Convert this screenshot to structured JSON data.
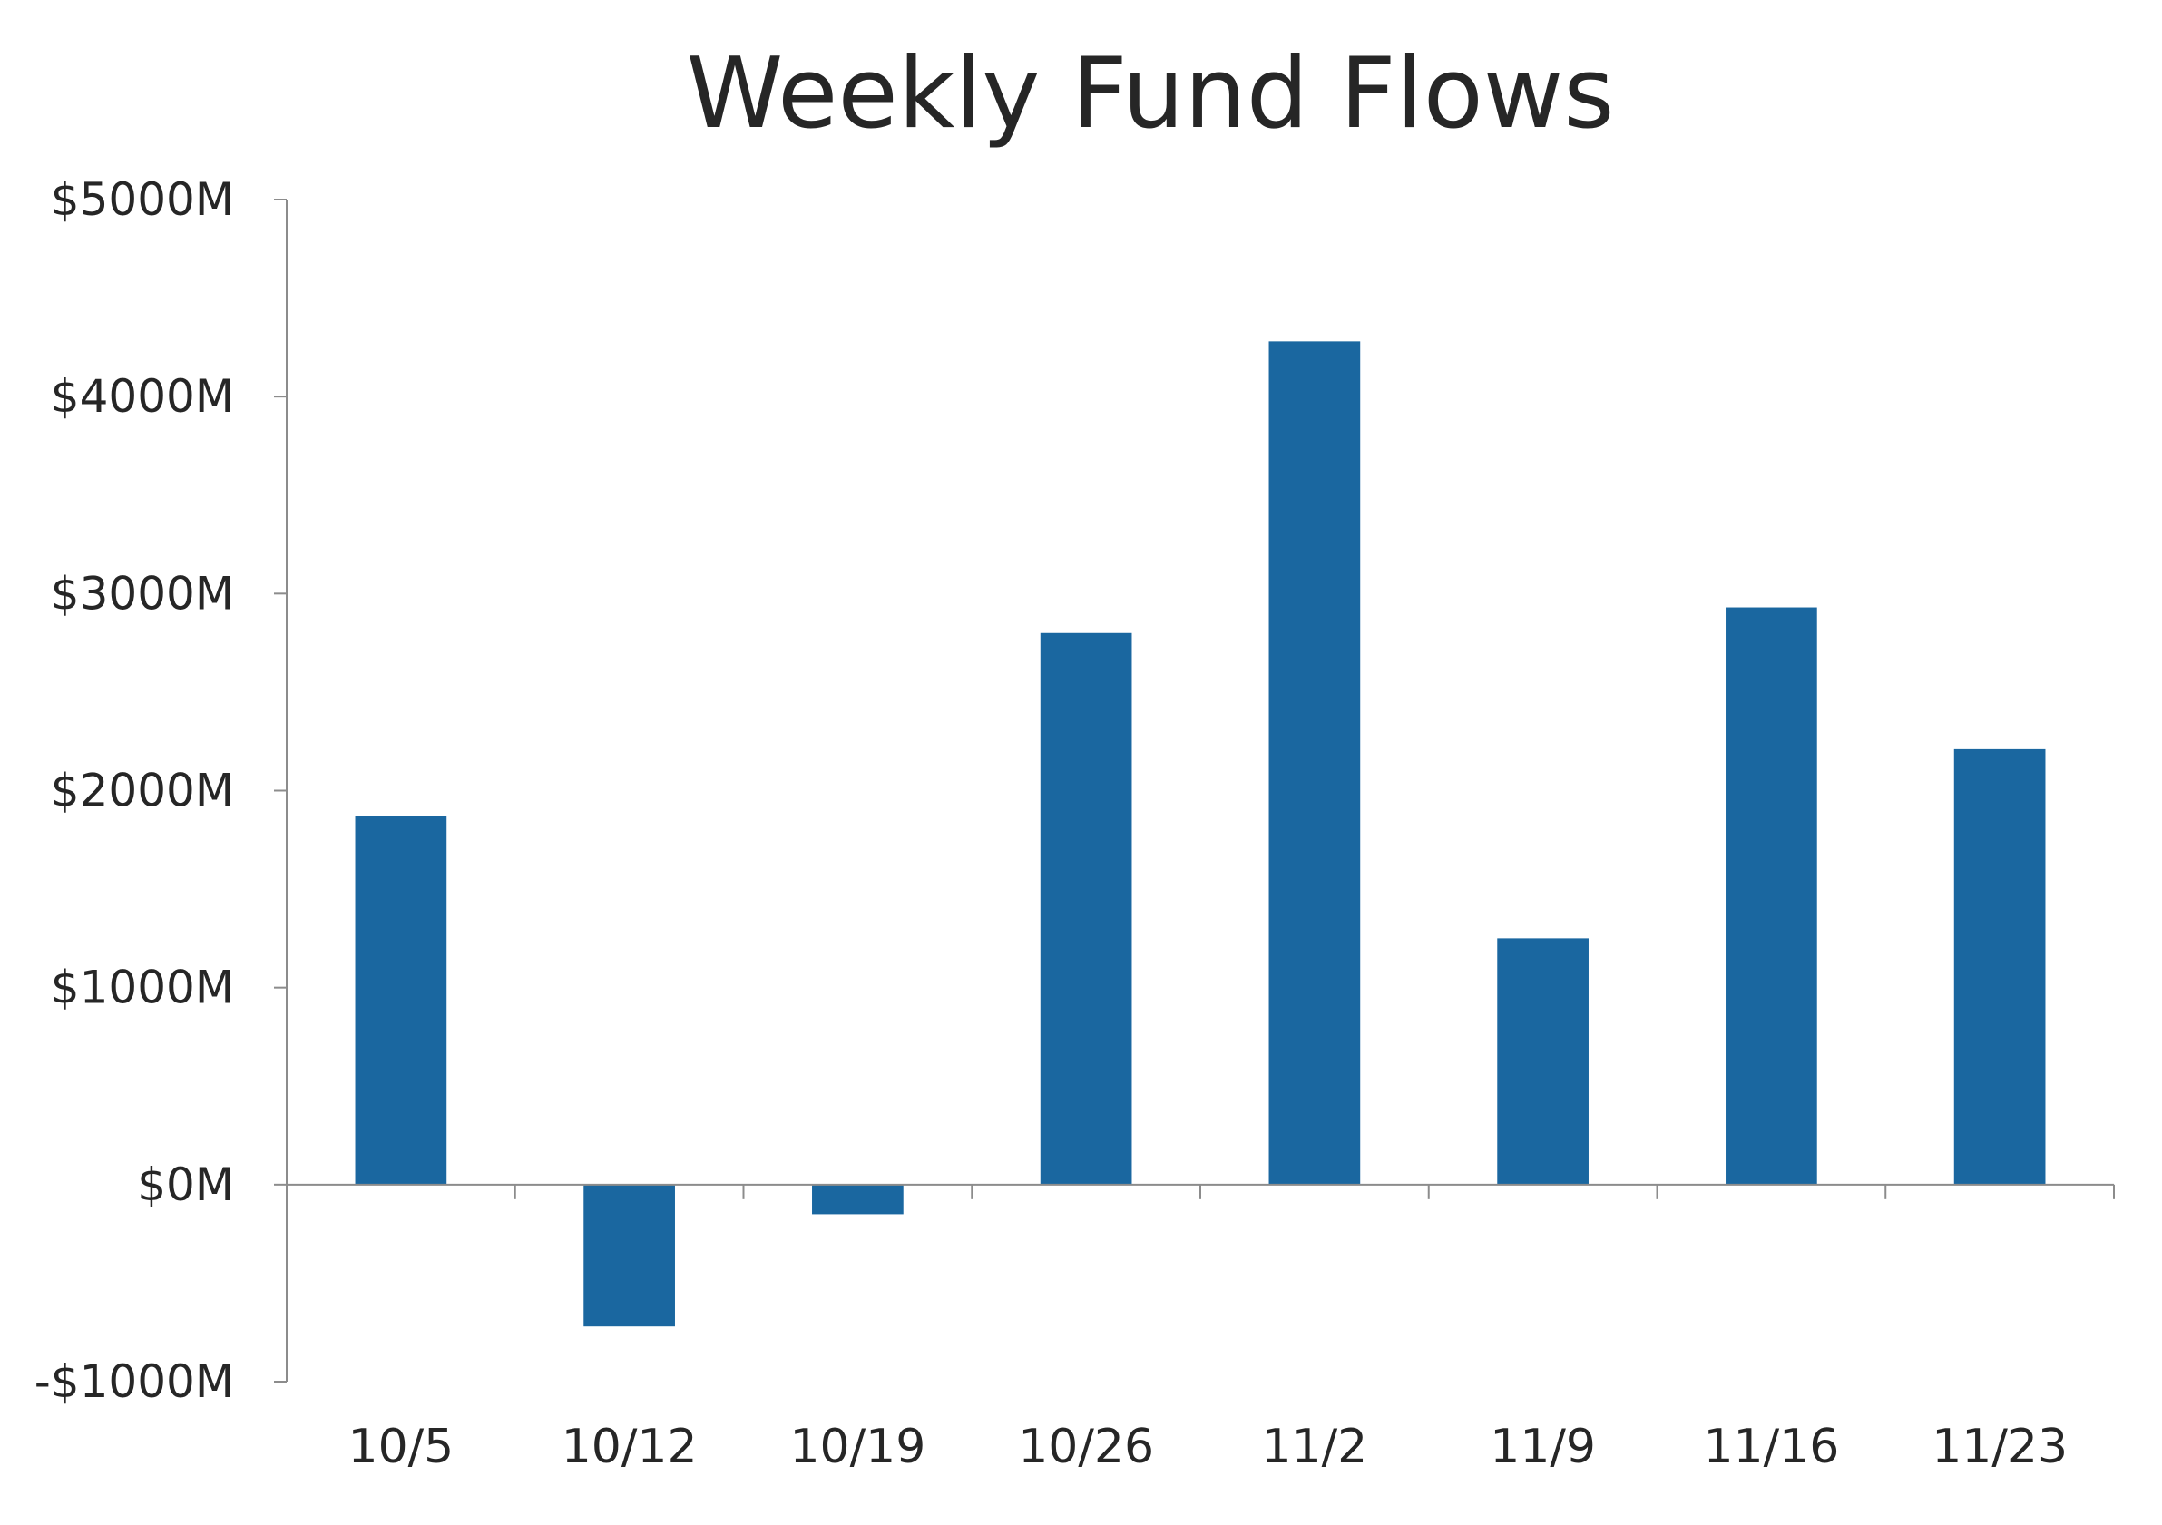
{
  "chart_data": {
    "type": "bar",
    "title": "Weekly Fund Flows",
    "xlabel": "",
    "ylabel": "",
    "categories": [
      "10/5",
      "10/12",
      "10/19",
      "10/26",
      "11/2",
      "11/9",
      "11/16",
      "11/23"
    ],
    "values": [
      1870,
      -720,
      -150,
      2800,
      4280,
      1250,
      2930,
      2210
    ],
    "ylim": [
      -1000,
      5000
    ],
    "yticks": [
      -1000,
      0,
      1000,
      2000,
      3000,
      4000,
      5000
    ],
    "ytick_labels": [
      "-$1000M",
      "$0M",
      "$1000M",
      "$2000M",
      "$3000M",
      "$4000M",
      "$5000M"
    ],
    "grid": false,
    "legend": "none",
    "bar_color": "#1a67a0",
    "axis_color": "#8c8c8c"
  }
}
